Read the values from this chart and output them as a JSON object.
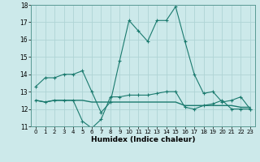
{
  "title": "",
  "xlabel": "Humidex (Indice chaleur)",
  "ylabel": "",
  "background_color": "#cce9ea",
  "grid_color": "#afd4d5",
  "line_color": "#1a7a6e",
  "x": [
    0,
    1,
    2,
    3,
    4,
    5,
    6,
    7,
    8,
    9,
    10,
    11,
    12,
    13,
    14,
    15,
    16,
    17,
    18,
    19,
    20,
    21,
    22,
    23
  ],
  "series1": [
    13.3,
    13.8,
    13.8,
    14.0,
    14.0,
    14.2,
    13.0,
    11.8,
    12.4,
    14.8,
    17.1,
    16.5,
    15.9,
    17.1,
    17.1,
    17.9,
    15.9,
    14.0,
    12.9,
    13.0,
    12.4,
    12.5,
    12.7,
    12.0
  ],
  "series2": [
    12.5,
    12.4,
    12.5,
    12.5,
    12.5,
    11.3,
    10.9,
    11.4,
    12.7,
    12.7,
    12.8,
    12.8,
    12.8,
    12.9,
    13.0,
    13.0,
    12.1,
    12.0,
    12.2,
    12.3,
    12.5,
    12.0,
    12.0,
    12.0
  ],
  "series3": [
    12.5,
    12.4,
    12.5,
    12.5,
    12.5,
    12.5,
    12.4,
    12.4,
    12.4,
    12.4,
    12.4,
    12.4,
    12.4,
    12.4,
    12.4,
    12.4,
    12.2,
    12.2,
    12.2,
    12.2,
    12.2,
    12.2,
    12.1,
    12.1
  ],
  "ylim": [
    11,
    18
  ],
  "xlim": [
    -0.5,
    23.5
  ],
  "yticks": [
    11,
    12,
    13,
    14,
    15,
    16,
    17,
    18
  ],
  "xticks": [
    0,
    1,
    2,
    3,
    4,
    5,
    6,
    7,
    8,
    9,
    10,
    11,
    12,
    13,
    14,
    15,
    16,
    17,
    18,
    19,
    20,
    21,
    22,
    23
  ]
}
